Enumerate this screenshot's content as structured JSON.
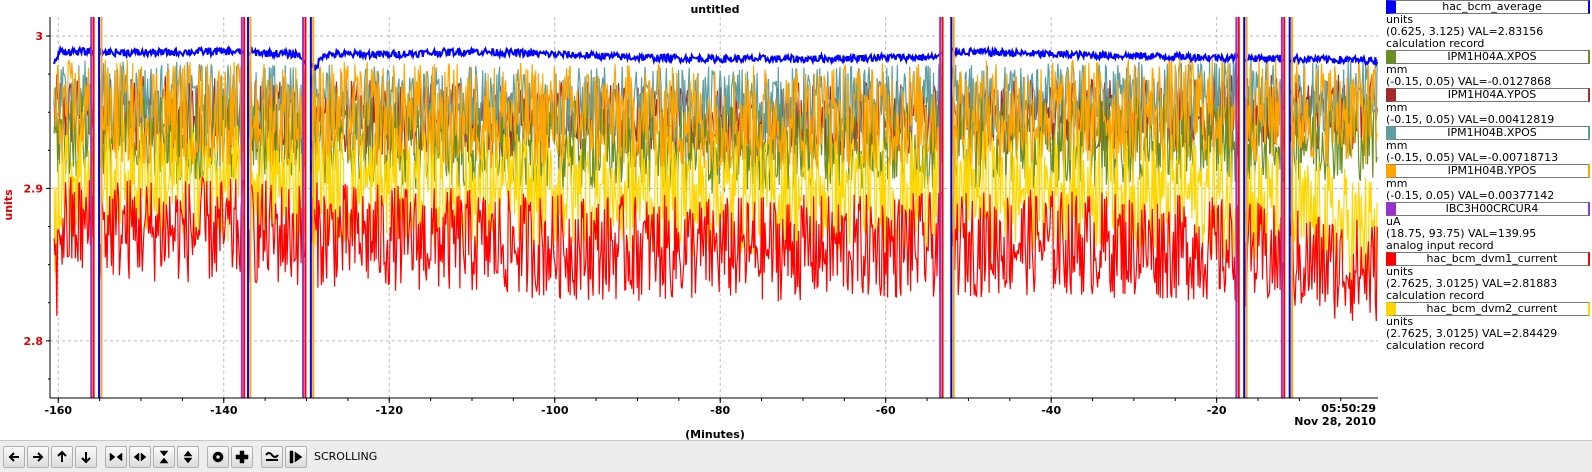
{
  "chart_data": {
    "type": "line",
    "title": "untitled",
    "xlabel": "(Minutes)",
    "ylabel": "units",
    "xlim": [
      -161,
      -0.5
    ],
    "ylim": [
      2.7625,
      3.0125
    ],
    "xticks": [
      -160,
      -140,
      -120,
      -100,
      -80,
      -60,
      -40,
      -20
    ],
    "yticks": [
      2.8,
      2.9,
      3
    ],
    "grid": true,
    "time_label": "05:50:29",
    "date_label": "Nov 28, 2010",
    "ycolor": "#e00000",
    "gaps": [
      [
        -155.8,
        -155.0
      ],
      [
        -137.6,
        -137.0
      ],
      [
        -130.2,
        -129.4
      ],
      [
        -53.2,
        -52.0
      ],
      [
        -17.4,
        -16.6
      ],
      [
        -11.9,
        -11.1
      ]
    ],
    "series": [
      {
        "name": "hac_bcm_average",
        "color": "#0000ff",
        "units": "units",
        "range": "(0.625, 3.125)",
        "val": "VAL=2.83156",
        "type_desc": "calculation record",
        "points": [
          [
            -160,
            2.99
          ],
          [
            -150,
            2.989
          ],
          [
            -140,
            2.99
          ],
          [
            -131,
            2.988
          ],
          [
            -129,
            2.978
          ],
          [
            -128,
            2.988
          ],
          [
            -120,
            2.988
          ],
          [
            -110,
            2.99
          ],
          [
            -100,
            2.988
          ],
          [
            -90,
            2.986
          ],
          [
            -80,
            2.985
          ],
          [
            -70,
            2.985
          ],
          [
            -60,
            2.986
          ],
          [
            -54,
            2.986
          ],
          [
            -52,
            2.99
          ],
          [
            -40,
            2.988
          ],
          [
            -30,
            2.987
          ],
          [
            -20,
            2.986
          ],
          [
            -10,
            2.985
          ],
          [
            -1,
            2.984
          ]
        ]
      },
      {
        "name": "IPM1H04A.XPOS",
        "color": "#6b8e23",
        "units": "mm",
        "range": "(-0.15, 0.05)",
        "val": "VAL=-0.0127868",
        "type_desc": "",
        "points": [
          [
            -160,
            2.935
          ],
          [
            -140,
            2.932
          ],
          [
            -120,
            2.93
          ],
          [
            -100,
            2.928
          ],
          [
            -80,
            2.925
          ],
          [
            -60,
            2.93
          ],
          [
            -40,
            2.93
          ],
          [
            -20,
            2.933
          ],
          [
            -1,
            2.935
          ]
        ]
      },
      {
        "name": "IPM1H04A.YPOS",
        "color": "#a52a2a",
        "units": "mm",
        "range": "(-0.15, 0.05)",
        "val": "VAL=0.00412819",
        "type_desc": "",
        "points": [
          [
            -160,
            2.95
          ],
          [
            -140,
            2.948
          ],
          [
            -120,
            2.946
          ],
          [
            -100,
            2.945
          ],
          [
            -80,
            2.945
          ],
          [
            -60,
            2.946
          ],
          [
            -40,
            2.948
          ],
          [
            -20,
            2.95
          ],
          [
            -1,
            2.95
          ]
        ]
      },
      {
        "name": "IPM1H04B.XPOS",
        "color": "#5f9ea0",
        "units": "mm",
        "range": "(-0.15, 0.05)",
        "val": "VAL=-0.00718713",
        "type_desc": "",
        "points": [
          [
            -160,
            2.96
          ],
          [
            -140,
            2.958
          ],
          [
            -120,
            2.956
          ],
          [
            -100,
            2.955
          ],
          [
            -80,
            2.955
          ],
          [
            -60,
            2.956
          ],
          [
            -40,
            2.958
          ],
          [
            -20,
            2.959
          ],
          [
            -1,
            2.96
          ]
        ]
      },
      {
        "name": "IPM1H04B.YPOS",
        "color": "#ffa500",
        "units": "mm",
        "range": "(-0.15, 0.05)",
        "val": "VAL=0.00377142",
        "type_desc": "",
        "points": [
          [
            -160,
            2.95
          ],
          [
            -140,
            2.95
          ],
          [
            -120,
            2.948
          ],
          [
            -100,
            2.948
          ],
          [
            -80,
            2.946
          ],
          [
            -60,
            2.948
          ],
          [
            -40,
            2.95
          ],
          [
            -20,
            2.952
          ],
          [
            -1,
            2.95
          ]
        ]
      },
      {
        "name": "IBC3H00CRCUR4",
        "color": "#9932cc",
        "units": "uA",
        "range": "(18.75, 93.75)",
        "val": "VAL=139.95",
        "type_desc": "analog input record",
        "points": []
      },
      {
        "name": "hac_bcm_dvm1_current",
        "color": "#ff0000",
        "units": "units",
        "range": "(2.7625, 3.0125)",
        "val": "VAL=2.81883",
        "type_desc": "calculation record",
        "points": [
          [
            -160,
            2.875
          ],
          [
            -140,
            2.872
          ],
          [
            -120,
            2.868
          ],
          [
            -100,
            2.862
          ],
          [
            -80,
            2.86
          ],
          [
            -60,
            2.862
          ],
          [
            -40,
            2.865
          ],
          [
            -20,
            2.86
          ],
          [
            -1,
            2.845
          ]
        ]
      },
      {
        "name": "hac_bcm_dvm2_current",
        "color": "#ffd700",
        "units": "units",
        "range": "(2.7625, 3.0125)",
        "val": "VAL=2.84429",
        "type_desc": "calculation record",
        "points": [
          [
            -160,
            2.91
          ],
          [
            -140,
            2.905
          ],
          [
            -120,
            2.9
          ],
          [
            -100,
            2.898
          ],
          [
            -80,
            2.895
          ],
          [
            -60,
            2.898
          ],
          [
            -40,
            2.9
          ],
          [
            -20,
            2.895
          ],
          [
            -1,
            2.87
          ]
        ]
      }
    ]
  },
  "toolbar": {
    "status": "SCROLLING",
    "buttons": [
      {
        "icon": "arrow-left-icon"
      },
      {
        "icon": "arrow-right-icon"
      },
      {
        "icon": "arrow-up-icon"
      },
      {
        "icon": "arrow-down-icon"
      },
      {
        "icon": "zoom-in-horizontal-icon"
      },
      {
        "icon": "zoom-out-horizontal-icon"
      },
      {
        "icon": "zoom-in-vertical-icon"
      },
      {
        "icon": "zoom-out-vertical-icon"
      },
      {
        "icon": "zoom-out-icon"
      },
      {
        "icon": "zoom-in-icon"
      },
      {
        "icon": "autoscale-icon"
      },
      {
        "icon": "stagger-icon"
      }
    ]
  }
}
